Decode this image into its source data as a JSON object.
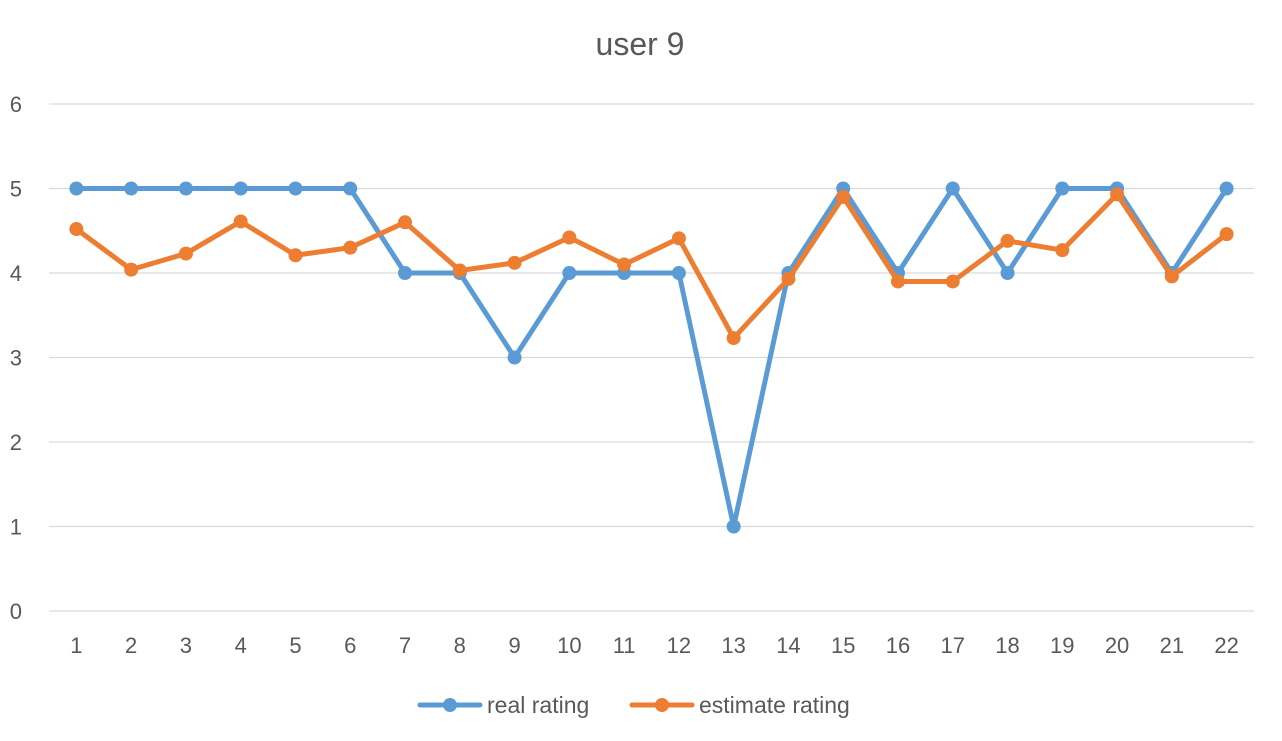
{
  "chart_data": {
    "type": "line",
    "title": "user 9",
    "xlabel": "",
    "ylabel": "",
    "categories": [
      "1",
      "2",
      "3",
      "4",
      "5",
      "6",
      "7",
      "8",
      "9",
      "10",
      "11",
      "12",
      "13",
      "14",
      "15",
      "16",
      "17",
      "18",
      "19",
      "20",
      "21",
      "22"
    ],
    "ylim": [
      0,
      6
    ],
    "yticks": [
      "0",
      "1",
      "2",
      "3",
      "4",
      "5",
      "6"
    ],
    "grid": true,
    "legend_position": "bottom",
    "series": [
      {
        "name": "real rating",
        "color": "#5b9bd5",
        "values": [
          5,
          5,
          5,
          5,
          5,
          5,
          4,
          4,
          3,
          4,
          4,
          4,
          1,
          4,
          5,
          4,
          5,
          4,
          5,
          5,
          4,
          5
        ]
      },
      {
        "name": "estimate rating",
        "color": "#ed7d31",
        "values": [
          4.52,
          4.04,
          4.23,
          4.61,
          4.21,
          4.3,
          4.6,
          4.03,
          4.12,
          4.42,
          4.1,
          4.41,
          3.23,
          3.93,
          4.9,
          3.9,
          3.9,
          4.38,
          4.27,
          4.93,
          3.96,
          4.46
        ]
      }
    ]
  }
}
